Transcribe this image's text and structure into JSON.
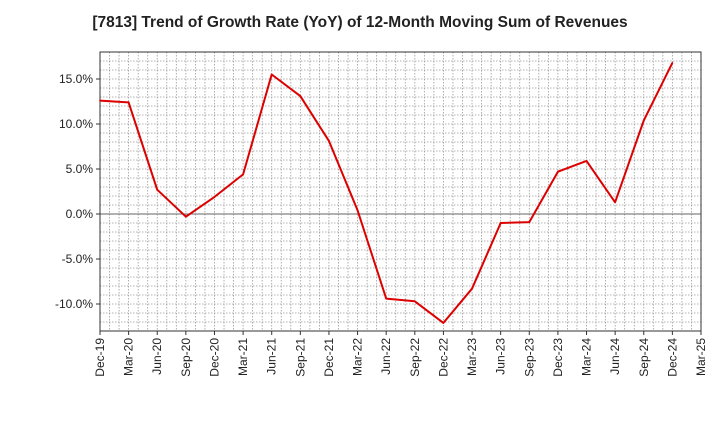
{
  "title": "[7813]  Trend of Growth Rate (YoY) of 12-Month Moving Sum of Revenues",
  "chart_data": {
    "type": "line",
    "title": "[7813]  Trend of Growth Rate (YoY) of 12-Month Moving Sum of Revenues",
    "xlabel": "",
    "ylabel": "",
    "categories": [
      "Dec-19",
      "Mar-20",
      "Jun-20",
      "Sep-20",
      "Dec-20",
      "Mar-21",
      "Jun-21",
      "Sep-21",
      "Dec-21",
      "Mar-22",
      "Jun-22",
      "Sep-22",
      "Dec-22",
      "Mar-23",
      "Jun-23",
      "Sep-23",
      "Dec-23",
      "Mar-24",
      "Jun-24",
      "Sep-24",
      "Dec-24",
      "Mar-25"
    ],
    "y_ticks": [
      15.0,
      10.0,
      5.0,
      0.0,
      -5.0,
      -10.0
    ],
    "y_tick_labels": [
      "15.0%",
      "10.0%",
      "5.0%",
      "0.0%",
      "-5.0%",
      "-10.0%"
    ],
    "ylim": [
      -13.0,
      18.0
    ],
    "grid": true,
    "series": [
      {
        "color": "#dd0000",
        "values": [
          12.6,
          12.4,
          2.7,
          -0.3,
          1.9,
          4.4,
          15.5,
          13.1,
          8.1,
          0.4,
          -9.4,
          -9.7,
          -12.1,
          -8.3,
          -1.0,
          -0.9,
          4.7,
          5.9,
          1.3,
          10.4,
          16.8,
          null
        ]
      }
    ]
  }
}
